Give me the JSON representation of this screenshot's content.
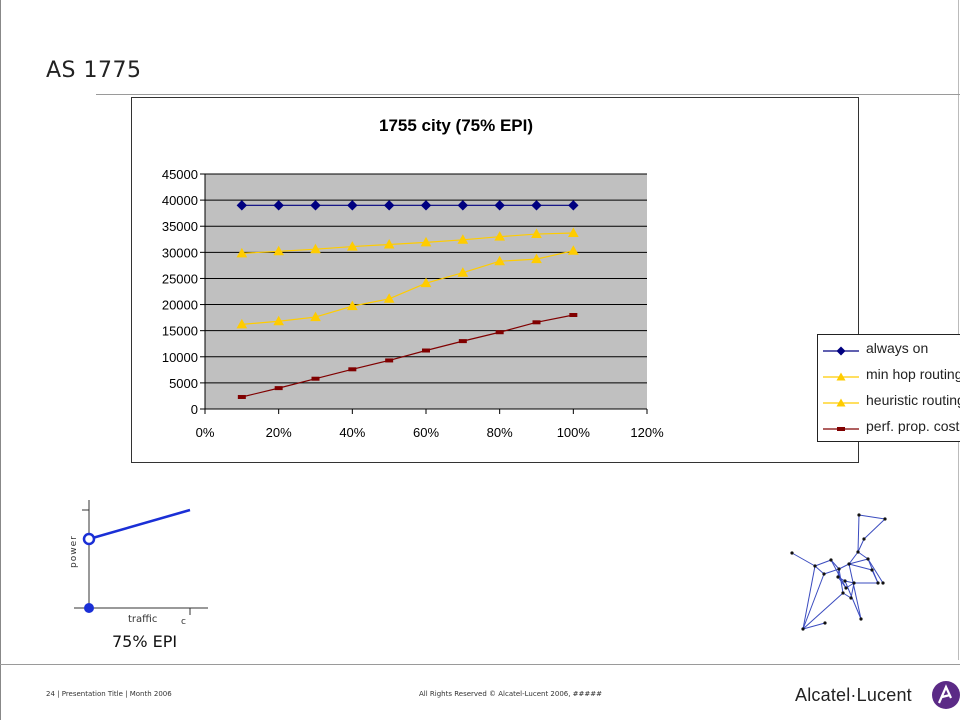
{
  "slide": {
    "title": "AS 1775",
    "footer_left": "24 | Presentation Title | Month 2006",
    "footer_center": "All Rights Reserved © Alcatel-Lucent 2006, #####",
    "brand": "Alcatel·Lucent"
  },
  "chart_data": {
    "type": "line",
    "title": "1755 city (75% EPI)",
    "xlabel": "",
    "ylabel": "",
    "x": [
      0.1,
      0.2,
      0.3,
      0.4,
      0.5,
      0.6,
      0.7,
      0.8,
      0.9,
      1.0
    ],
    "xlim": [
      0,
      1.2
    ],
    "ylim": [
      0,
      45000
    ],
    "x_ticks": [
      0,
      0.2,
      0.4,
      0.6,
      0.8,
      1.0,
      1.2
    ],
    "x_tick_labels": [
      "0%",
      "20%",
      "40%",
      "60%",
      "80%",
      "100%",
      "120%"
    ],
    "y_ticks": [
      0,
      5000,
      10000,
      15000,
      20000,
      25000,
      30000,
      35000,
      40000,
      45000
    ],
    "y_tick_labels": [
      "0",
      "5000",
      "10000",
      "15000",
      "20000",
      "25000",
      "30000",
      "35000",
      "40000",
      "45000"
    ],
    "grid": "horizontal",
    "plot_background": "#c0c0c0",
    "legend_position": "right",
    "series": [
      {
        "name": "always on",
        "color": "#000080",
        "marker": "diamond",
        "values": [
          39000,
          39000,
          39000,
          39000,
          39000,
          39000,
          39000,
          39000,
          39000,
          39000
        ]
      },
      {
        "name": "min hop routing",
        "color": "#ffcc00",
        "marker": "triangle",
        "values": [
          29800,
          30200,
          30600,
          31100,
          31500,
          31900,
          32400,
          33000,
          33500,
          33700
        ]
      },
      {
        "name": "heuristic routing",
        "color": "#ffcc00",
        "marker": "triangle",
        "values": [
          16200,
          16800,
          17600,
          19700,
          21100,
          24100,
          26100,
          28300,
          28700,
          30300
        ]
      },
      {
        "name": "perf. prop. cost",
        "color": "#800000",
        "marker": "square",
        "values": [
          2300,
          4000,
          5800,
          7600,
          9300,
          11200,
          13000,
          14700,
          16600,
          18000
        ]
      }
    ]
  },
  "mini_chart": {
    "ylabel": "power",
    "xlabel": "traffic",
    "x_tick_label": "c",
    "caption": "75% EPI",
    "line_color": "#1a2fd6",
    "idle_power_fraction": 0.75
  },
  "network": {
    "edge_color": "#3a4bbf",
    "node_color": "#111111"
  }
}
